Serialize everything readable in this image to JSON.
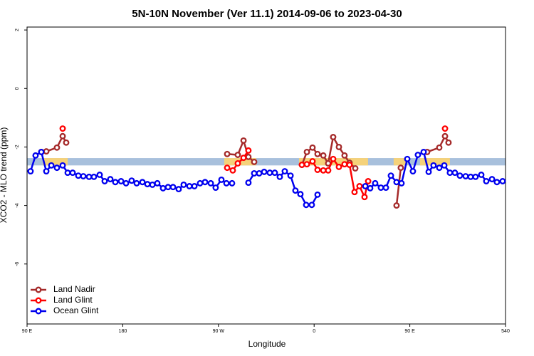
{
  "chart_data": {
    "type": "line",
    "title": "5N-10N November (Ver 11.1)   2014-09-06 to 2023-04-30",
    "x_label": "Longitude",
    "y_label": "XCO2 - MLO trend (ppm)",
    "xlim": [
      90,
      540
    ],
    "xticks": [
      {
        "value": 90,
        "label": "90 E"
      },
      180,
      {
        "value": 270,
        "label": "90 W"
      },
      {
        "value": 360,
        "label": "0"
      },
      {
        "value": 450,
        "label": "90 E"
      },
      540
    ],
    "ylim": [
      -8.05,
      2.1
    ],
    "yticks": [
      2,
      0,
      -2,
      -4,
      -6
    ],
    "legend": "bottom-left",
    "band": {
      "ylim": [
        -2.63,
        -2.38
      ],
      "color": "#a8c0dc",
      "highlight_color": "#f5d27a",
      "highlights": [
        [
          104.7,
          128.2
        ],
        [
          275.5,
          305.6
        ],
        [
          345.8,
          410.7
        ],
        [
          434.8,
          446.2
        ],
        [
          459.6,
          487.7
        ]
      ]
    },
    "series": [
      {
        "name": "Land Nadir",
        "color": "#a52a2a",
        "x": [
          103.4,
          108.1,
          118.1,
          123.5,
          126.8,
          null,
          278.2,
          288.2,
          293.6,
          298.2,
          303.6,
          null,
          348.5,
          353.2,
          358.5,
          363.2,
          368.6,
          373.2,
          377.9,
          383.3,
          388.6,
          393.3,
          398.7,
          null,
          437.5,
          441.5,
          null,
          466.3,
          477.7,
          483.1,
          486.4
        ],
        "values": [
          -2.17,
          -2.15,
          -2.02,
          -1.63,
          -1.85,
          null,
          -2.24,
          -2.27,
          -1.78,
          -2.34,
          -2.51,
          null,
          -2.61,
          -2.17,
          -2.02,
          -2.24,
          -2.29,
          -2.56,
          -1.66,
          -2,
          -2.29,
          -2.54,
          -2.73,
          null,
          -4,
          -2.71,
          null,
          -2.17,
          -2.02,
          -1.63,
          -1.85
        ]
      },
      {
        "name": "Land Glint",
        "color": "#ff0000",
        "x": [
          123.5,
          null,
          278.2,
          283.5,
          288.2,
          293.6,
          298.2,
          null,
          348.5,
          353.2,
          358.5,
          363.2,
          368.6,
          373.2,
          377.9,
          383.3,
          388.6,
          393.3,
          398,
          402.7,
          407.4,
          410.8,
          null,
          483.1
        ],
        "values": [
          -1.37,
          null,
          -2.71,
          -2.8,
          -2.56,
          -2.37,
          -2.12,
          null,
          -2.61,
          -2.59,
          -2.49,
          -2.78,
          -2.8,
          -2.8,
          -2.41,
          -2.68,
          -2.59,
          -2.61,
          -3.54,
          -3.34,
          -3.71,
          -3.17,
          null,
          -1.37
        ]
      },
      {
        "name": "Ocean Glint",
        "color": "#0000ee",
        "x": [
          93.3,
          98,
          103.4,
          108.1,
          112.8,
          118.1,
          123.5,
          128.2,
          132.9,
          138.2,
          142.9,
          148.3,
          152.9,
          158.3,
          163,
          168.3,
          173,
          178.4,
          183.1,
          188.4,
          193.1,
          198.5,
          203.2,
          207.9,
          212.5,
          217.9,
          222.6,
          227.3,
          232.6,
          237.3,
          242.7,
          247.4,
          252.7,
          257.4,
          262.8,
          267.4,
          272.8,
          277.5,
          282.8,
          null,
          298.2,
          303.6,
          308.3,
          313,
          318.3,
          323,
          327.7,
          332.4,
          337.8,
          342.4,
          347.1,
          352.5,
          357.8,
          363.2,
          null,
          408.1,
          412.7,
          417.4,
          422.8,
          427.5,
          432.2,
          437.5,
          442.2,
          447.6,
          452.9,
          457.6,
          463,
          467.7,
          472.3,
          477.7,
          482.4,
          487.7,
          492.4,
          497.1,
          502.5,
          507.2,
          511.8,
          517.2,
          521.9,
          527.3,
          531.9,
          537.3
        ],
        "values": [
          -2.83,
          -2.29,
          -2.17,
          -2.83,
          -2.63,
          -2.71,
          -2.63,
          -2.88,
          -2.88,
          -2.98,
          -3,
          -3.02,
          -3.02,
          -2.95,
          -3.17,
          -3.1,
          -3.2,
          -3.17,
          -3.24,
          -3.15,
          -3.24,
          -3.2,
          -3.27,
          -3.29,
          -3.24,
          -3.41,
          -3.37,
          -3.37,
          -3.44,
          -3.29,
          -3.34,
          -3.34,
          -3.24,
          -3.2,
          -3.24,
          -3.39,
          -3.12,
          -3.24,
          -3.24,
          null,
          -3.22,
          -2.9,
          -2.9,
          -2.85,
          -2.88,
          -2.88,
          -3.02,
          -2.83,
          -2.98,
          -3.49,
          -3.61,
          -3.98,
          -3.98,
          -3.63,
          null,
          -3.34,
          -3.41,
          -3.24,
          -3.39,
          -3.39,
          -2.98,
          -3.2,
          -3.24,
          -2.41,
          -2.83,
          -2.27,
          -2.17,
          -2.85,
          -2.63,
          -2.71,
          -2.63,
          -2.88,
          -2.88,
          -2.98,
          -3,
          -3.02,
          -3.02,
          -2.95,
          -3.17,
          -3.1,
          -3.2,
          -3.17
        ]
      }
    ]
  }
}
